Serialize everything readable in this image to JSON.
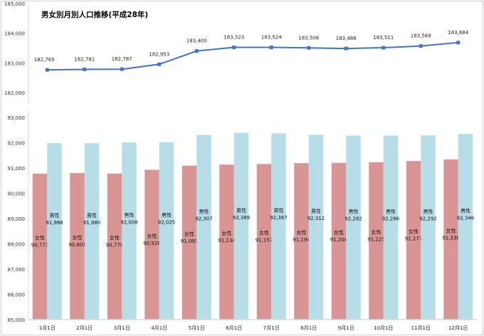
{
  "chart_data": [
    {
      "type": "line",
      "title": "男女別月別人口推移(平成28年)",
      "categories": [
        "1月1日",
        "2月1日",
        "3月1日",
        "4月1日",
        "5月1日",
        "6月1日",
        "7月1日",
        "8月1日",
        "9月1日",
        "10月1日",
        "11月1日",
        "12月1日"
      ],
      "values": [
        182765,
        182781,
        182787,
        182953,
        183400,
        183523,
        183524,
        183506,
        183486,
        183511,
        183569,
        183684
      ],
      "ylim": [
        182000,
        185000
      ],
      "yticks": [
        "182,000",
        "183,000",
        "184,000",
        "185,000"
      ],
      "color": "#4472c4"
    },
    {
      "type": "bar",
      "categories": [
        "1月1日",
        "2月1日",
        "3月1日",
        "4月1日",
        "5月1日",
        "6月1日",
        "7月1日",
        "8月1日",
        "9月1日",
        "10月1日",
        "11月1日",
        "12月1日"
      ],
      "series": [
        {
          "name": "女性",
          "values": [
            90777,
            90801,
            90779,
            90928,
            91093,
            91134,
            91157,
            91194,
            91204,
            91225,
            91277,
            91338
          ],
          "color": "#d99594"
        },
        {
          "name": "男性",
          "values": [
            91988,
            91980,
            92008,
            92025,
            92307,
            92389,
            92367,
            92312,
            92282,
            92286,
            92292,
            92346
          ],
          "color": "#b7dde8"
        }
      ],
      "ylim": [
        85000,
        93000
      ],
      "yticks": [
        "85,000",
        "86,000",
        "87,000",
        "88,000",
        "89,000",
        "90,000",
        "91,000",
        "92,000",
        "93,000"
      ]
    }
  ]
}
